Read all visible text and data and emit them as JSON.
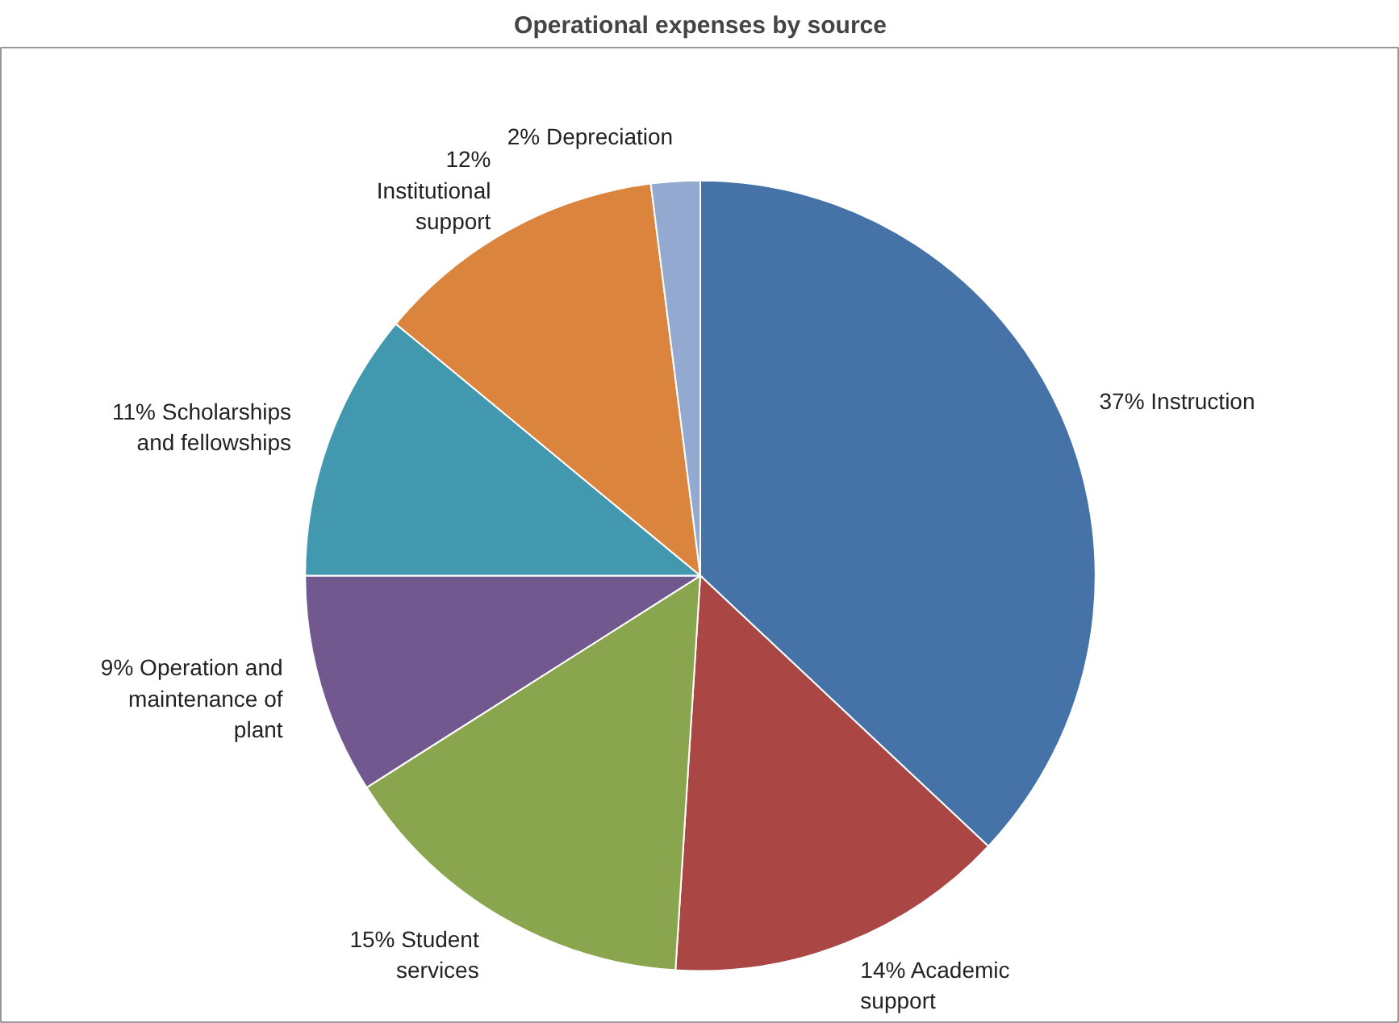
{
  "chart_data": {
    "type": "pie",
    "title": "Operational expenses by source",
    "categories": [
      "Instruction",
      "Academic support",
      "Student services",
      "Operation and maintenance of plant",
      "Scholarships and fellowships",
      "Institutional support",
      "Depreciation"
    ],
    "values": [
      37,
      14,
      15,
      9,
      11,
      12,
      2
    ],
    "value_labels": [
      "37%",
      "14%",
      "15%",
      "9%",
      "11%",
      "12%",
      "2%"
    ],
    "colors": [
      "#4572a7",
      "#aa4643",
      "#89a54e",
      "#71588f",
      "#4198af",
      "#db843d",
      "#93a9cf"
    ]
  }
}
